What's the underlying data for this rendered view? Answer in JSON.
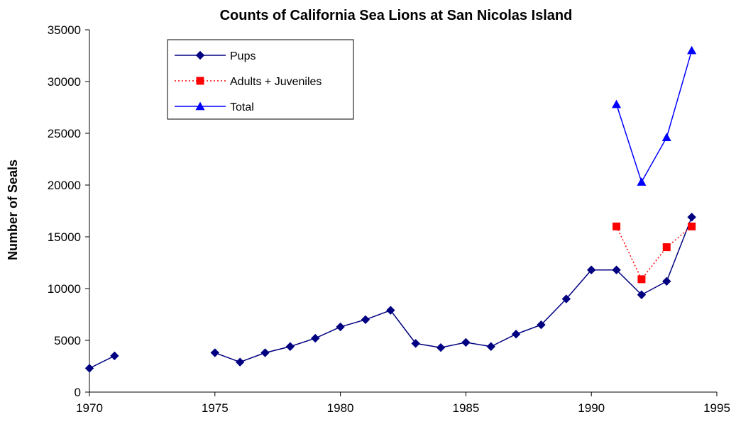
{
  "chart_data": {
    "type": "line",
    "title": "Counts of California Sea Lions at San Nicolas Island",
    "xlabel": "",
    "ylabel": "Number of Seals",
    "xlim": [
      1970,
      1995
    ],
    "ylim": [
      0,
      35000
    ],
    "x_ticks": [
      "1970",
      "1975",
      "1980",
      "1985",
      "1990",
      "1995"
    ],
    "y_ticks": [
      "0",
      "5000",
      "10000",
      "15000",
      "20000",
      "25000",
      "30000",
      "35000"
    ],
    "grid": false,
    "legend_position": "top-left",
    "series": [
      {
        "name": "Pups",
        "color": "#000080",
        "line_style": "solid",
        "marker": "diamond",
        "segments": [
          [
            [
              1970,
              2300
            ],
            [
              1971,
              3500
            ]
          ],
          [
            [
              1975,
              3800
            ],
            [
              1976,
              2900
            ],
            [
              1977,
              3800
            ],
            [
              1978,
              4400
            ],
            [
              1979,
              5200
            ],
            [
              1980,
              6300
            ],
            [
              1981,
              7000
            ],
            [
              1982,
              7900
            ],
            [
              1983,
              4700
            ],
            [
              1984,
              4300
            ],
            [
              1985,
              4800
            ],
            [
              1986,
              4400
            ],
            [
              1987,
              5600
            ],
            [
              1988,
              6500
            ],
            [
              1989,
              9000
            ],
            [
              1990,
              11800
            ],
            [
              1991,
              11800
            ],
            [
              1992,
              9400
            ],
            [
              1993,
              10700
            ],
            [
              1994,
              16900
            ]
          ]
        ]
      },
      {
        "name": "Adults + Juveniles",
        "color": "#ff0000",
        "line_style": "dotted",
        "marker": "square",
        "segments": [
          [
            [
              1991,
              16000
            ],
            [
              1992,
              10900
            ],
            [
              1993,
              14000
            ],
            [
              1994,
              16000
            ]
          ]
        ]
      },
      {
        "name": "Total",
        "color": "#0000ff",
        "line_style": "solid",
        "marker": "triangle",
        "segments": [
          [
            [
              1991,
              27800
            ],
            [
              1992,
              20300
            ],
            [
              1993,
              24600
            ],
            [
              1994,
              33000
            ]
          ]
        ]
      }
    ]
  }
}
